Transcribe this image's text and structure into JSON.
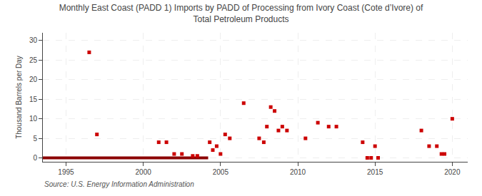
{
  "chart_data": {
    "type": "scatter",
    "title": "Monthly East Coast (PADD 1) Imports by PADD of Processing from Ivory Coast (Cote d’Ivore) of\nTotal Petroleum Products",
    "ylabel": "Thousand Barrels per Day",
    "annotations": [
      "Source: U.S. Energy Information Administration"
    ],
    "xlim": [
      1993.5,
      2021.0
    ],
    "ylim": [
      -1.0,
      32
    ],
    "xticks": [
      1995,
      2000,
      2005,
      2010,
      2015,
      2020
    ],
    "yticks": [
      0,
      5,
      10,
      15,
      20,
      25,
      30
    ],
    "grid": true,
    "series": [
      {
        "type": "line",
        "line_style": "solid",
        "color": "#8b0000",
        "x": [
          1993.5,
          2004.2
        ],
        "values": [
          0,
          0
        ]
      },
      {
        "type": "scatter",
        "marker": "square",
        "color": "#cc0000",
        "x": [
          1996.5,
          1997.0,
          2001.0,
          2001.5,
          2002.0,
          2002.5,
          2003.2,
          2003.5,
          2004.3,
          2004.5,
          2004.75,
          2005.0,
          2005.3,
          2005.6,
          2006.5,
          2007.5,
          2007.8,
          2008.0,
          2008.25,
          2008.5,
          2008.75,
          2009.0,
          2009.3,
          2010.5,
          2011.3,
          2012.0,
          2012.5,
          2014.2,
          2014.5,
          2014.75,
          2015.0,
          2015.2,
          2018.0,
          2018.5,
          2019.0,
          2019.3,
          2019.5,
          2020.0
        ],
        "values": [
          27,
          6,
          4,
          4,
          1,
          1,
          0.5,
          0.5,
          4,
          2,
          3,
          1,
          6,
          5,
          14,
          5,
          4,
          8,
          13,
          12,
          7,
          8,
          7,
          5,
          9,
          8,
          8,
          4,
          0,
          0,
          3,
          0,
          7,
          3,
          3,
          1,
          1,
          10
        ]
      }
    ]
  }
}
